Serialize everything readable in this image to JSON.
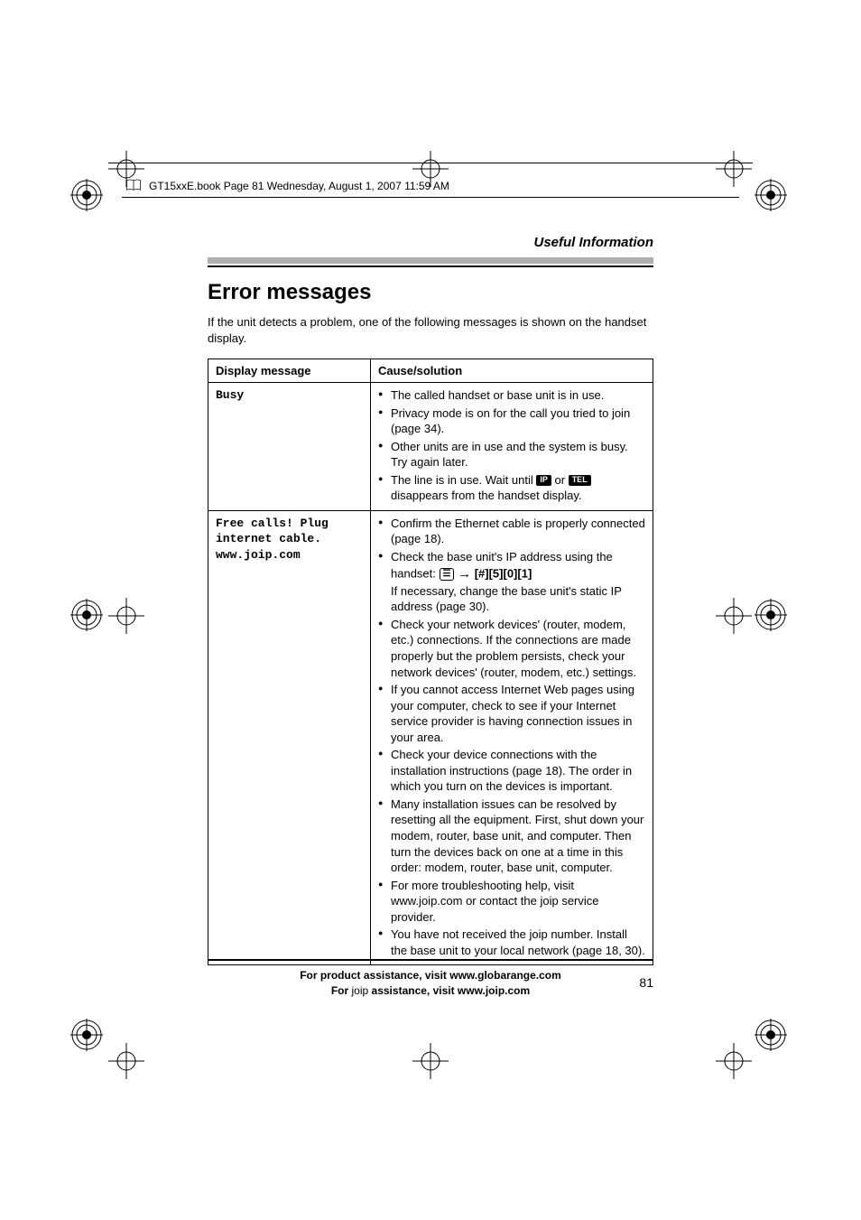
{
  "header": {
    "running_text": "GT15xxE.book  Page 81  Wednesday, August 1, 2007  11:59 AM"
  },
  "section": {
    "category": "Useful Information",
    "title": "Error messages",
    "intro": "If the unit detects a problem, one of the following messages is shown on the handset display."
  },
  "table": {
    "headers": {
      "col1": "Display message",
      "col2": "Cause/solution"
    },
    "rows": [
      {
        "msg_lines": [
          "Busy"
        ],
        "items": [
          {
            "text": "The called handset or base unit is in use."
          },
          {
            "text": "Privacy mode is on for the call you tried to join (page 34)."
          },
          {
            "text": "Other units are in use and the system is busy. Try again later."
          },
          {
            "text_pre": "The line is in use. Wait until ",
            "icon1": "IP",
            "mid": " or ",
            "icon2": "TEL",
            "text_post": " disappears from the handset display."
          }
        ]
      },
      {
        "msg_lines": [
          "Free calls! Plug",
          "internet cable.",
          "www.joip.com"
        ],
        "items": [
          {
            "text": "Confirm the Ethernet cable is properly connected (page 18)."
          },
          {
            "text_pre": "Check the base unit's IP address using the handset: ",
            "keypad": true,
            "keys": "[#][5][0][1]",
            "text_post": "If necessary, change the base unit's static IP address (page 30)."
          },
          {
            "text": "Check your network devices' (router, modem, etc.) connections. If the connections are made properly but the problem persists, check your network devices' (router, modem, etc.) settings."
          },
          {
            "text": "If you cannot access Internet Web pages using your computer, check to see if your Internet service provider is having connection issues in your area."
          },
          {
            "text": "Check your device connections with the installation instructions (page 18). The order in which you turn on the devices is important."
          },
          {
            "text": "Many installation issues can be resolved by resetting all the equipment. First, shut down your modem, router, base unit, and computer. Then turn the devices back on one at a time in this order: modem, router, base unit, computer."
          },
          {
            "text_pre": "For more troubleshooting help, visit www.joip.com or contact the ",
            "joip": true,
            "text_post": " service provider."
          },
          {
            "text_pre": "You have not received the ",
            "joip": true,
            "text_post": " number. Install the base unit to your local network (page 18, 30)."
          }
        ]
      }
    ]
  },
  "footer": {
    "line1": "For product assistance, visit www.globarange.com",
    "line2_pre": "For ",
    "line2_post": " assistance, visit www.joip.com",
    "page_number": "81"
  },
  "colors": {
    "gray_band": "#b0b0b0",
    "black": "#000000",
    "white": "#ffffff"
  }
}
